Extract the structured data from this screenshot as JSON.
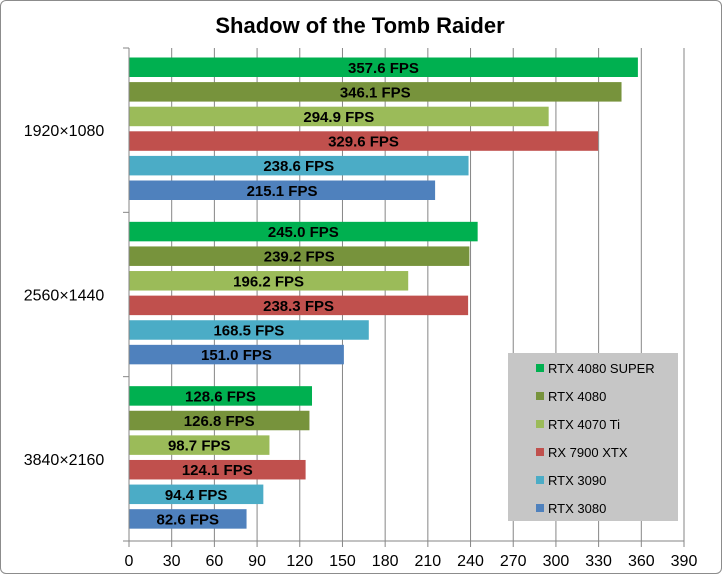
{
  "chart_data": {
    "type": "bar",
    "orientation": "horizontal",
    "title": "Shadow of the Tomb Raider",
    "categories": [
      "1920×1080",
      "2560×1440",
      "3840×2160"
    ],
    "series": [
      {
        "name": "RTX 4080 SUPER",
        "color": "#00b050",
        "values": [
          357.6,
          245.0,
          128.6
        ],
        "labels": [
          "357.6 FPS",
          "245.0 FPS",
          "128.6 FPS"
        ]
      },
      {
        "name": "RTX 4080",
        "color": "#77933c",
        "values": [
          346.1,
          239.2,
          126.8
        ],
        "labels": [
          "346.1 FPS",
          "239.2 FPS",
          "126.8 FPS"
        ]
      },
      {
        "name": "RTX 4070 Ti",
        "color": "#9bbb59",
        "values": [
          294.9,
          196.2,
          98.7
        ],
        "labels": [
          "294.9 FPS",
          "196.2 FPS",
          "98.7 FPS"
        ]
      },
      {
        "name": "RX 7900 XTX",
        "color": "#c0504d",
        "values": [
          329.6,
          238.3,
          124.1
        ],
        "labels": [
          "329.6 FPS",
          "238.3 FPS",
          "124.1 FPS"
        ]
      },
      {
        "name": "RTX 3090",
        "color": "#4bacc6",
        "values": [
          238.6,
          168.5,
          94.4
        ],
        "labels": [
          "238.6 FPS",
          "168.5 FPS",
          "94.4 FPS"
        ]
      },
      {
        "name": "RTX 3080",
        "color": "#4f81bd",
        "values": [
          215.1,
          151.0,
          82.6
        ],
        "labels": [
          "215.1 FPS",
          "151.0 FPS",
          "82.6 FPS"
        ]
      }
    ],
    "xlim": [
      0,
      390
    ],
    "xticks": [
      "0",
      "30",
      "60",
      "90",
      "120",
      "150",
      "180",
      "210",
      "240",
      "270",
      "300",
      "330",
      "360",
      "390"
    ],
    "grid": true,
    "legend_position": "bottom-right"
  }
}
